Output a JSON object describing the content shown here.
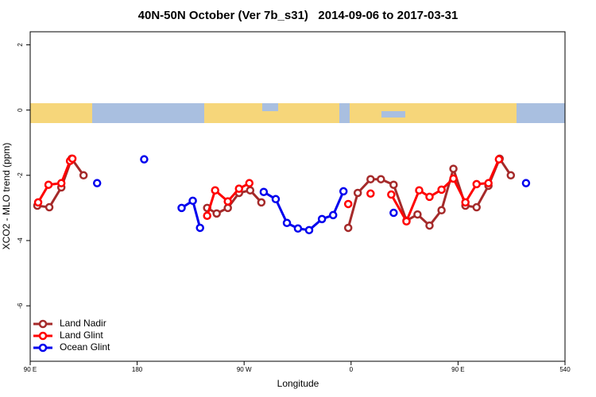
{
  "chart_data": {
    "type": "line",
    "title": "40N-50N October (Ver 7b_s31)   2014-09-06 to 2017-03-31",
    "xlabel": "Longitude",
    "ylabel": "XCO2 - MLO trend (ppm)",
    "xlim": [
      90,
      540
    ],
    "ylim": [
      -7.7,
      2.4
    ],
    "xticks": [
      {
        "value": 90,
        "label": "90 E"
      },
      180,
      {
        "value": 270,
        "label": "90 W"
      },
      {
        "value": 360,
        "label": "0"
      },
      {
        "value": 450,
        "label": "90 E"
      },
      540
    ],
    "yticks": [
      2,
      0,
      -2,
      -4,
      -6
    ],
    "legend": "lower left",
    "series": [
      {
        "name": "Land Nadir",
        "color": "#a52a2a",
        "x": [
          96.0,
          106.1,
          116.2,
          124.9,
          134.9,
          null,
          238.9,
          246.9,
          256.3,
          265.7,
          275.1,
          284.5,
          null,
          357.6,
          365.6,
          376.4,
          385.1,
          395.8,
          406.6,
          415.9,
          426.0,
          436.1,
          446.1,
          456.2,
          465.6,
          475.6,
          485.0,
          494.4
        ],
        "values": [
          -2.93,
          -2.98,
          -2.37,
          -1.49,
          -2.0,
          null,
          -3.0,
          -3.17,
          -3.0,
          -2.54,
          -2.46,
          -2.83,
          null,
          -3.61,
          -2.54,
          -2.12,
          -2.12,
          -2.29,
          -3.39,
          -3.2,
          -3.54,
          -3.07,
          -1.8,
          -2.93,
          -2.98,
          -2.32,
          -1.49,
          -2.0
        ]
      },
      {
        "name": "Land Glint",
        "color": "#ff0000",
        "x": [
          96.7,
          105.4,
          116.2,
          123.5,
          125.5,
          null,
          238.9,
          245.6,
          256.3,
          265.7,
          274.4,
          null,
          357.6,
          null,
          376.4,
          null,
          393.8,
          406.6,
          417.3,
          426.0,
          436.1,
          446.1,
          456.2,
          465.6,
          475.6,
          484.4
        ],
        "values": [
          -2.83,
          -2.29,
          -2.24,
          -1.56,
          -1.49,
          null,
          -3.24,
          -2.46,
          -2.8,
          -2.41,
          -2.24,
          null,
          -2.88,
          null,
          -2.56,
          null,
          -2.59,
          -3.41,
          -2.46,
          -2.66,
          -2.44,
          -2.1,
          -2.83,
          -2.27,
          -2.24,
          -1.51
        ]
      },
      {
        "name": "Ocean Glint",
        "color": "#0000ee",
        "x": [
          146.3,
          null,
          185.9,
          null,
          217.4,
          226.8,
          232.9,
          null,
          286.5,
          296.6,
          306.0,
          315.3,
          324.7,
          335.5,
          344.9,
          353.6,
          null,
          395.8,
          null,
          507.2
        ],
        "values": [
          -2.24,
          null,
          -1.51,
          null,
          -3.0,
          -2.78,
          -3.61,
          null,
          -2.51,
          -2.73,
          -3.46,
          -3.63,
          -3.68,
          -3.34,
          -3.22,
          -2.49,
          null,
          -3.15,
          null,
          -2.24
        ]
      }
    ]
  }
}
